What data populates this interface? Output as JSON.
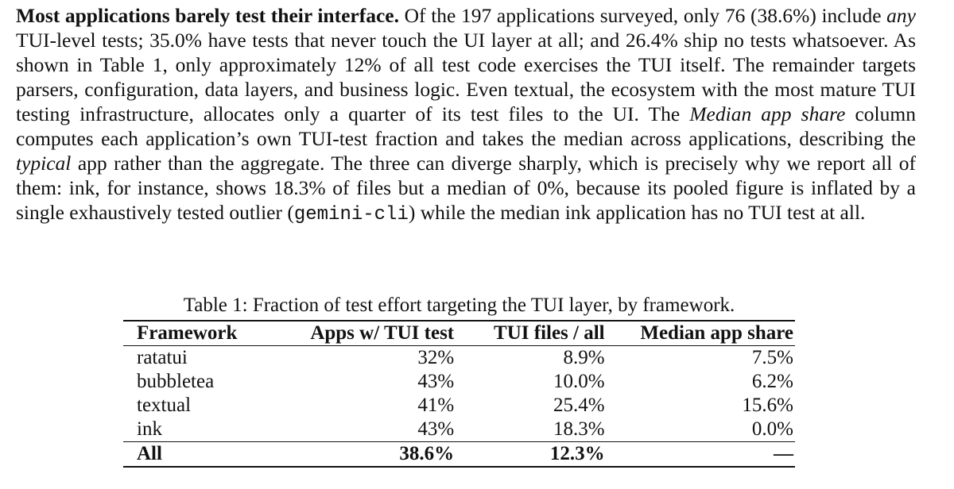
{
  "paragraph": [
    "Most applications barely test their interface.",
    " Of the 197 applications surveyed, only 76 (38.6%) include ",
    "any",
    " TUI-level tests; 35.0% have tests that never touch the UI layer at all; and 26.4% ship no tests whatsoever. As shown in Table 1, only approximately 12% of all test code exercises the TUI itself. The remainder targets parsers, configuration, data layers, and business logic. Even textual, the ecosystem with the most mature TUI testing infrastructure, allocates only a quarter of its test files to the UI. The ",
    "Median app share",
    " column computes each application’s own TUI-test fraction and takes the median across applications, describing the ",
    "typical",
    " app rather than the aggregate. The three can diverge sharply, which is precisely why we report all of them: ink, for instance, shows 18.3% of files but a median of 0%, because its pooled figure is inflated by a single exhaustively tested outlier (",
    "gemini-cli",
    ") while the median ink application has no TUI test at all."
  ],
  "table": {
    "caption": "Table 1: Fraction of test effort targeting the TUI layer, by framework.",
    "header": [
      "Framework",
      "Apps w/ TUI test",
      "TUI files / all",
      "Median app share"
    ],
    "rows": [
      [
        "ratatui",
        "32%",
        "8.9%",
        "7.5%"
      ],
      [
        "bubbletea",
        "43%",
        "10.0%",
        "6.2%"
      ],
      [
        "textual",
        "41%",
        "25.4%",
        "15.6%"
      ],
      [
        "ink",
        "43%",
        "18.3%",
        "0.0%"
      ]
    ],
    "total": [
      "All",
      "38.6%",
      "12.3%",
      "—"
    ]
  }
}
